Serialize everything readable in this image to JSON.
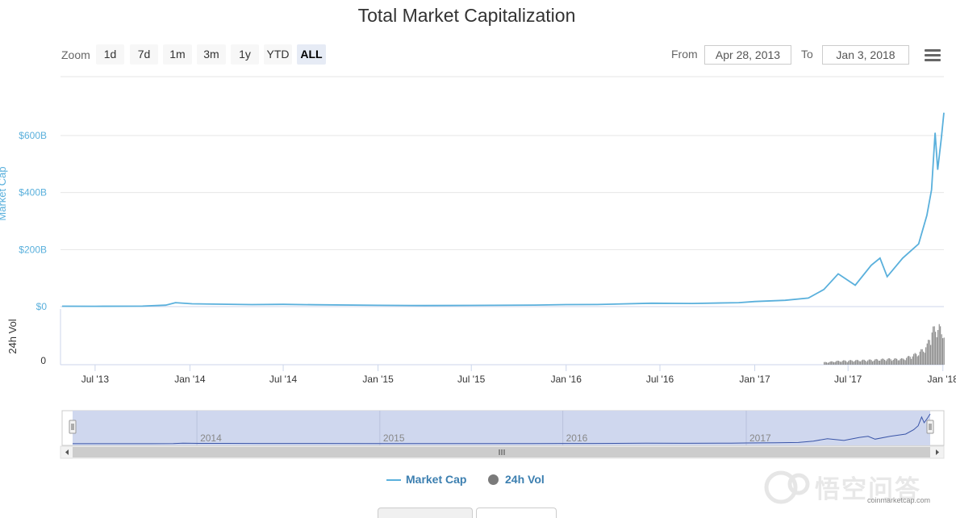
{
  "title": "Total Market Capitalization",
  "zoom": {
    "label": "Zoom",
    "buttons": [
      "1d",
      "7d",
      "1m",
      "3m",
      "1y",
      "YTD",
      "ALL"
    ],
    "active": "ALL"
  },
  "range": {
    "from_label": "From",
    "from_value": "Apr 28, 2013",
    "to_label": "To",
    "to_value": "Jan 3, 2018"
  },
  "legend": {
    "market_cap": "Market Cap",
    "volume": "24h Vol"
  },
  "watermark": {
    "text": "悟空问答",
    "url": "coinmarketcap.com"
  },
  "colors": {
    "market_cap": "#5ab0dc",
    "volume": "#7a7a7a",
    "navigator_fill": "#cfd7ee",
    "navigator_line": "#3a55a8"
  },
  "chart_data": {
    "type": "line",
    "title": "Total Market Capitalization",
    "x_axis": {
      "type": "date",
      "range": [
        "2013-04-28",
        "2018-01-03"
      ],
      "tick_labels": [
        "Jul '13",
        "Jan '14",
        "Jul '14",
        "Jan '15",
        "Jul '15",
        "Jan '16",
        "Jul '16",
        "Jan '17",
        "Jul '17",
        "Jan '18"
      ],
      "tick_dates": [
        "2013-07-01",
        "2014-01-01",
        "2014-07-01",
        "2015-01-01",
        "2015-07-01",
        "2016-01-01",
        "2016-07-01",
        "2017-01-01",
        "2017-07-01",
        "2018-01-01"
      ]
    },
    "y_axis": {
      "label": "Market Cap",
      "tick_labels": [
        "$0",
        "$200B",
        "$400B",
        "$600B"
      ],
      "tick_values": [
        0,
        200,
        400,
        600
      ],
      "unit": "billions USD",
      "ylim": [
        0,
        600
      ]
    },
    "y2_axis": {
      "label": "24h Vol",
      "tick_labels": [
        "0"
      ]
    },
    "series": [
      {
        "name": "Market Cap",
        "points": [
          [
            "2013-04-28",
            1.5
          ],
          [
            "2013-07-01",
            1.2
          ],
          [
            "2013-10-01",
            1.8
          ],
          [
            "2013-11-15",
            5.0
          ],
          [
            "2013-12-04",
            14.0
          ],
          [
            "2014-01-05",
            10.0
          ],
          [
            "2014-03-01",
            8.5
          ],
          [
            "2014-05-01",
            7.0
          ],
          [
            "2014-07-01",
            8.0
          ],
          [
            "2014-09-01",
            6.5
          ],
          [
            "2015-01-01",
            4.5
          ],
          [
            "2015-04-01",
            3.8
          ],
          [
            "2015-07-01",
            4.2
          ],
          [
            "2015-11-01",
            5.5
          ],
          [
            "2016-01-01",
            7.0
          ],
          [
            "2016-03-01",
            7.5
          ],
          [
            "2016-06-15",
            12.0
          ],
          [
            "2016-09-01",
            11.0
          ],
          [
            "2016-12-01",
            14.0
          ],
          [
            "2017-01-01",
            17.7
          ],
          [
            "2017-03-01",
            22.0
          ],
          [
            "2017-04-15",
            30.0
          ],
          [
            "2017-05-15",
            60.0
          ],
          [
            "2017-06-12",
            115.0
          ],
          [
            "2017-07-15",
            75.0
          ],
          [
            "2017-08-15",
            145.0
          ],
          [
            "2017-09-01",
            170.0
          ],
          [
            "2017-09-15",
            105.0
          ],
          [
            "2017-10-15",
            170.0
          ],
          [
            "2017-11-15",
            220.0
          ],
          [
            "2017-12-01",
            320.0
          ],
          [
            "2017-12-10",
            410.0
          ],
          [
            "2017-12-17",
            610.0
          ],
          [
            "2017-12-22",
            480.0
          ],
          [
            "2017-12-29",
            590.0
          ],
          [
            "2018-01-03",
            680.0
          ]
        ]
      },
      {
        "name": "24h Vol",
        "points": [
          [
            "2013-04-28",
            0
          ],
          [
            "2017-05-15",
            0.05
          ],
          [
            "2017-06-15",
            0.08
          ],
          [
            "2017-08-15",
            0.1
          ],
          [
            "2017-09-15",
            0.12
          ],
          [
            "2017-10-15",
            0.12
          ],
          [
            "2017-11-15",
            0.25
          ],
          [
            "2017-12-01",
            0.4
          ],
          [
            "2017-12-10",
            0.75
          ],
          [
            "2017-12-17",
            0.7
          ],
          [
            "2017-12-22",
            0.9
          ],
          [
            "2017-12-29",
            0.6
          ],
          [
            "2018-01-03",
            0.8
          ]
        ]
      }
    ],
    "navigator": {
      "year_labels": [
        "2014",
        "2015",
        "2016",
        "2017"
      ],
      "year_dates": [
        "2014-01-01",
        "2015-01-01",
        "2016-01-01",
        "2017-01-01"
      ]
    }
  }
}
